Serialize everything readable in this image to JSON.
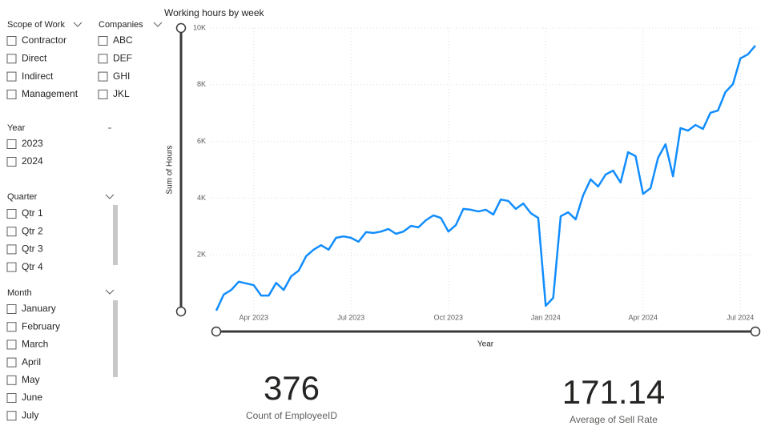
{
  "slicers": [
    {
      "title": "Scope of Work",
      "items": [
        "Contractor",
        "Direct",
        "Indirect",
        "Management"
      ]
    },
    {
      "title": "Companies",
      "items": [
        "ABC",
        "DEF",
        "GHI",
        "JKL"
      ]
    },
    {
      "title": "Year",
      "items": [
        "2023",
        "2024"
      ]
    },
    {
      "title": "Quarter",
      "items": [
        "Qtr 1",
        "Qtr 2",
        "Qtr 3",
        "Qtr 4"
      ]
    },
    {
      "title": "Month",
      "items": [
        "January",
        "February",
        "March",
        "April",
        "May",
        "June",
        "July"
      ]
    }
  ],
  "chart_data": {
    "type": "line",
    "title": "Working hours by week",
    "x_label": "Year",
    "y_label": "Sum of Hours",
    "categories": [
      null,
      null,
      null,
      null,
      null,
      "Apr 2023",
      null,
      null,
      null,
      null,
      null,
      null,
      null,
      null,
      null,
      null,
      null,
      null,
      "Jul 2023",
      null,
      null,
      null,
      null,
      null,
      null,
      null,
      null,
      null,
      null,
      null,
      null,
      "Oct 2023",
      null,
      null,
      null,
      null,
      null,
      null,
      null,
      null,
      null,
      null,
      null,
      null,
      "Jan 2024",
      null,
      null,
      null,
      null,
      null,
      null,
      null,
      null,
      null,
      null,
      null,
      null,
      "Apr 2024",
      null,
      null,
      null,
      null,
      null,
      null,
      null,
      null,
      null,
      null,
      null,
      null,
      "Jul 2024",
      null,
      null
    ],
    "values": [
      30,
      600,
      760,
      1050,
      990,
      930,
      560,
      560,
      1010,
      760,
      1240,
      1440,
      1950,
      2180,
      2340,
      2180,
      2600,
      2650,
      2600,
      2460,
      2800,
      2770,
      2820,
      2910,
      2740,
      2820,
      3020,
      2970,
      3220,
      3390,
      3300,
      2820,
      3050,
      3620,
      3590,
      3530,
      3590,
      3420,
      3950,
      3900,
      3620,
      3810,
      3470,
      3300,
      200,
      480,
      3360,
      3500,
      3250,
      4100,
      4660,
      4410,
      4830,
      4970,
      4550,
      5620,
      5480,
      4150,
      4350,
      5420,
      5900,
      4770,
      6470,
      6380,
      6580,
      6440,
      7010,
      7090,
      7740,
      8020,
      8930,
      9070,
      9380
    ],
    "color": "#118dff",
    "ylim": [
      0,
      10000
    ],
    "yticks": [
      {
        "value": 2000,
        "label": "2K"
      },
      {
        "value": 4000,
        "label": "4K"
      },
      {
        "value": 6000,
        "label": "6K"
      },
      {
        "value": 8000,
        "label": "8K"
      },
      {
        "value": 10000,
        "label": "10K"
      }
    ],
    "grid": true
  },
  "cards": [
    {
      "value": 376,
      "label": "Count of EmployeeID"
    },
    {
      "value": 171.14,
      "label": "Average of Sell Rate"
    }
  ]
}
